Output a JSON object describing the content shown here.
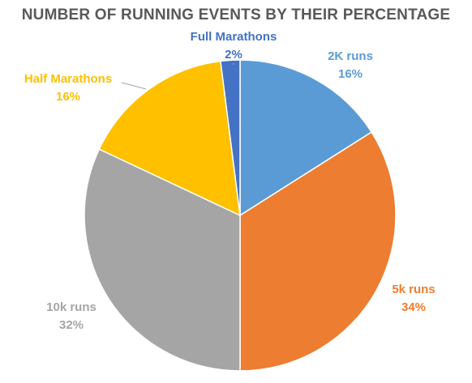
{
  "chart_data": {
    "type": "pie",
    "title": "NUMBER OF RUNNING EVENTS BY THEIR PERCENTAGE",
    "slices": [
      {
        "label": "2K runs",
        "value": 16,
        "display": "16%",
        "color": "#5B9BD5",
        "label_color": "#5B9BD5"
      },
      {
        "label": "5k runs",
        "value": 34,
        "display": "34%",
        "color": "#ED7D31",
        "label_color": "#ED7D31"
      },
      {
        "label": "10k runs",
        "value": 32,
        "display": "32%",
        "color": "#A5A5A5",
        "label_color": "#A5A5A5"
      },
      {
        "label": "Half Marathons",
        "value": 16,
        "display": "16%",
        "color": "#FFC000",
        "label_color": "#FFC000"
      },
      {
        "label": "Full Marathons",
        "value": 2,
        "display": "2%",
        "color": "#4472C4",
        "label_color": "#4472C4"
      }
    ],
    "legend": "none",
    "labels": "outside"
  }
}
